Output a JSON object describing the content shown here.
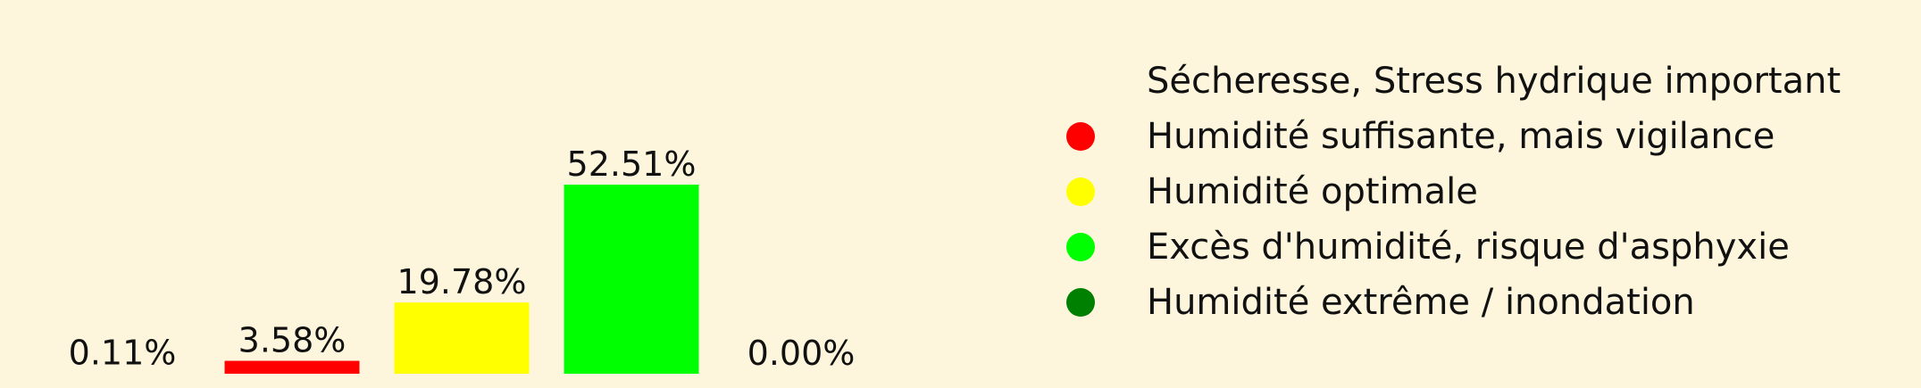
{
  "chart_data": {
    "type": "bar",
    "categories": [
      "Sécheresse, Stress hydrique important",
      "Humidité suffisante, mais vigilance",
      "Humidité optimale",
      "Excès d'humidité, risque d'asphyxie",
      "Humidité extrême / inondation"
    ],
    "values": [
      0.11,
      3.58,
      19.78,
      52.51,
      0.0
    ],
    "data_labels": [
      "0.11%",
      "3.58%",
      "19.78%",
      "52.51%",
      "0.00%"
    ],
    "unit": "%",
    "bar_colors": [
      "#fdf6dc",
      "#ff0000",
      "#ffff00",
      "#00ff00",
      "#008000"
    ],
    "ylim": [
      0,
      60
    ],
    "grid": false,
    "axes_visible": false,
    "legend_position": "right",
    "legend": [
      {
        "label": "Sécheresse, Stress hydrique important",
        "color": "#fdf6dc"
      },
      {
        "label": "Humidité suffisante, mais vigilance",
        "color": "#ff0000"
      },
      {
        "label": "Humidité optimale",
        "color": "#ffff00"
      },
      {
        "label": "Excès d'humidité, risque d'asphyxie",
        "color": "#00ff00"
      },
      {
        "label": "Humidité extrême / inondation",
        "color": "#008000"
      }
    ]
  }
}
